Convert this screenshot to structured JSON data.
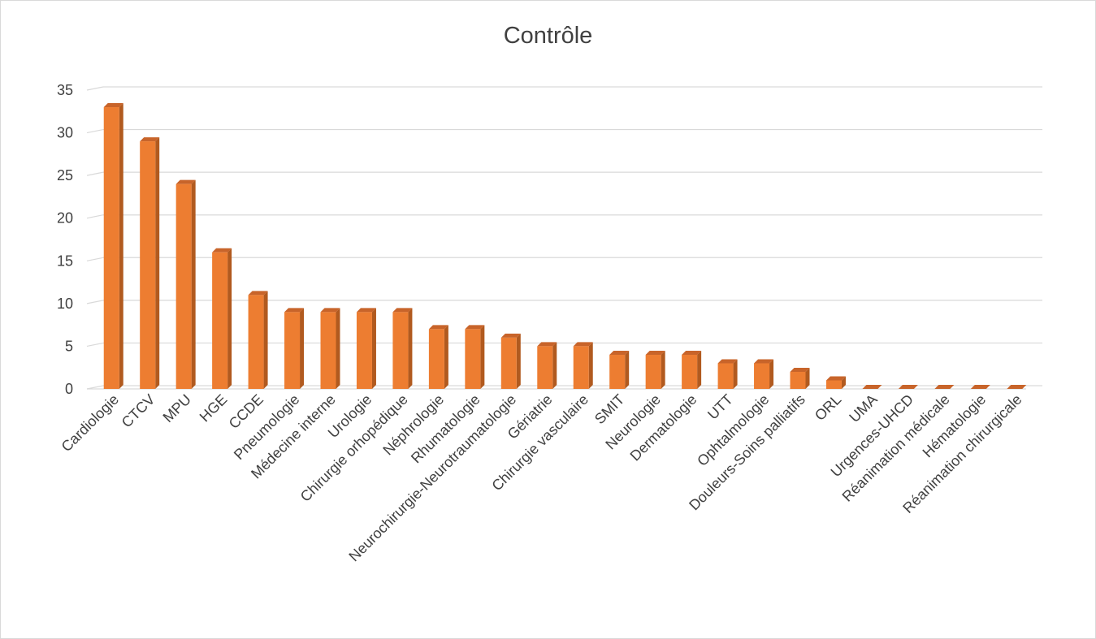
{
  "chart_data": {
    "type": "bar",
    "title": "Contrôle",
    "xlabel": "",
    "ylabel": "",
    "ylim": [
      0,
      35
    ],
    "yticks": [
      0,
      5,
      10,
      15,
      20,
      25,
      30,
      35
    ],
    "grid": true,
    "legend": "none",
    "bar_color": "#ed7d31",
    "bar_side_color": "#b15a1f",
    "bar_top_color": "#c8642a",
    "categories": [
      "Cardiologie",
      "CTCV",
      "MPU",
      "HGE",
      "CCDE",
      "Pneumologie",
      "Médecine interne",
      "Urologie",
      "Chirurgie orhopédique",
      "Néphrologie",
      "Rhumatologie",
      "Neurochirurgie-Neurotraumatologie",
      "Gériatrie",
      "Chirurgie vasculaire",
      "SMIT",
      "Neurologie",
      "Dermatologie",
      "UTT",
      "Ophtalmologie",
      "Douleurs-Soins palliatifs",
      "ORL",
      "UMA",
      "Urgences-UHCD",
      "Réanimation médicale",
      "Hématologie",
      "Réanimation chirurgicale"
    ],
    "values": [
      33,
      29,
      24,
      16,
      11,
      9,
      9,
      9,
      9,
      7,
      7,
      6,
      5,
      5,
      4,
      4,
      4,
      3,
      3,
      2,
      1,
      0,
      0,
      0,
      0,
      0
    ]
  }
}
